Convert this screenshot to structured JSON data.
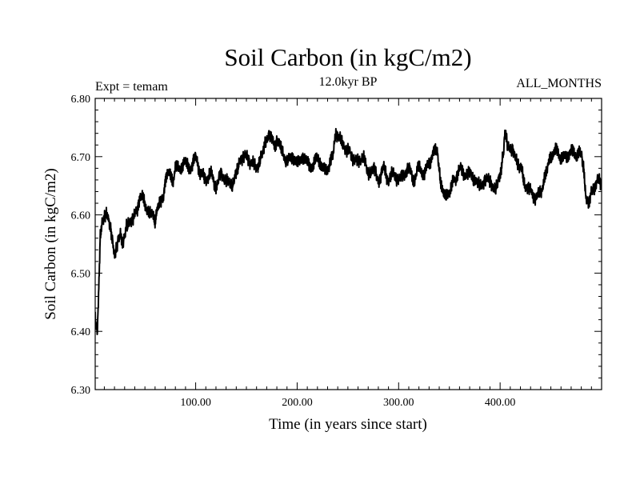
{
  "chart_data": {
    "type": "line",
    "title": "Soil Carbon (in kgC/m2)",
    "subtitle_left": "Expt = temam",
    "subtitle_center": "12.0kyr BP",
    "subtitle_right": "ALL_MONTHS",
    "xlabel": "Time (in years since start)",
    "ylabel": "Soil Carbon (in kgC/m2)",
    "xlim": [
      1,
      500
    ],
    "ylim": [
      6.3,
      6.8
    ],
    "xticks": [
      100,
      200,
      300,
      400
    ],
    "xtick_labels": [
      "100.00",
      "200.00",
      "300.00",
      "400.00"
    ],
    "yticks": [
      6.3,
      6.4,
      6.5,
      6.6,
      6.7,
      6.8
    ],
    "ytick_labels": [
      "6.30",
      "6.40",
      "6.50",
      "6.60",
      "6.70",
      "6.80"
    ],
    "grid": false,
    "line_color": "#000000",
    "series": [
      {
        "name": "Soil Carbon",
        "x": [
          1,
          2,
          3,
          4,
          5,
          6,
          8,
          10,
          12,
          14,
          16,
          18,
          20,
          22,
          24,
          26,
          28,
          30,
          32,
          35,
          38,
          42,
          45,
          48,
          50,
          52,
          55,
          58,
          60,
          62,
          65,
          68,
          70,
          72,
          75,
          78,
          80,
          85,
          90,
          95,
          100,
          105,
          110,
          115,
          120,
          125,
          130,
          135,
          140,
          145,
          150,
          155,
          160,
          165,
          170,
          172,
          175,
          178,
          180,
          185,
          190,
          195,
          200,
          205,
          210,
          215,
          220,
          225,
          230,
          235,
          238,
          242,
          245,
          250,
          255,
          260,
          265,
          270,
          275,
          280,
          285,
          290,
          295,
          300,
          305,
          310,
          315,
          320,
          325,
          330,
          335,
          338,
          340,
          342,
          345,
          350,
          355,
          360,
          365,
          370,
          375,
          380,
          385,
          390,
          395,
          400,
          403,
          405,
          408,
          412,
          415,
          420,
          425,
          430,
          435,
          440,
          445,
          450,
          455,
          460,
          465,
          470,
          475,
          478,
          480,
          482,
          485,
          488,
          490,
          493,
          496,
          500
        ],
        "y": [
          6.43,
          6.41,
          6.4,
          6.44,
          6.5,
          6.56,
          6.59,
          6.6,
          6.6,
          6.59,
          6.58,
          6.56,
          6.53,
          6.54,
          6.56,
          6.57,
          6.55,
          6.56,
          6.58,
          6.59,
          6.59,
          6.61,
          6.63,
          6.63,
          6.62,
          6.61,
          6.6,
          6.6,
          6.59,
          6.61,
          6.62,
          6.63,
          6.66,
          6.67,
          6.67,
          6.66,
          6.68,
          6.68,
          6.69,
          6.68,
          6.7,
          6.67,
          6.66,
          6.67,
          6.65,
          6.67,
          6.66,
          6.65,
          6.67,
          6.7,
          6.7,
          6.69,
          6.68,
          6.7,
          6.73,
          6.74,
          6.73,
          6.72,
          6.73,
          6.71,
          6.69,
          6.7,
          6.69,
          6.7,
          6.69,
          6.68,
          6.7,
          6.68,
          6.68,
          6.7,
          6.74,
          6.73,
          6.72,
          6.71,
          6.7,
          6.69,
          6.7,
          6.67,
          6.68,
          6.66,
          6.68,
          6.66,
          6.67,
          6.66,
          6.67,
          6.68,
          6.66,
          6.68,
          6.67,
          6.69,
          6.71,
          6.71,
          6.68,
          6.65,
          6.63,
          6.64,
          6.66,
          6.68,
          6.67,
          6.67,
          6.66,
          6.65,
          6.66,
          6.66,
          6.64,
          6.67,
          6.7,
          6.74,
          6.72,
          6.71,
          6.7,
          6.68,
          6.65,
          6.64,
          6.63,
          6.64,
          6.67,
          6.7,
          6.71,
          6.7,
          6.7,
          6.71,
          6.7,
          6.71,
          6.7,
          6.68,
          6.63,
          6.62,
          6.64,
          6.65,
          6.66,
          6.65
        ]
      }
    ]
  }
}
